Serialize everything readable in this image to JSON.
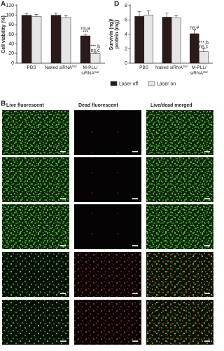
{
  "chart_data": [
    {
      "type": "bar",
      "panel_label": "A",
      "ylabel": [
        "Cell viability (%)"
      ],
      "categories": [
        "PBS",
        "Naked siRNA",
        "M-PLL/ siRNA"
      ],
      "category_superscripts": [
        null,
        "Sur",
        "Sur"
      ],
      "ylim": [
        0,
        120
      ],
      "yticks": [
        0,
        20,
        40,
        60,
        80,
        100,
        120
      ],
      "series": [
        {
          "values": [
            100,
            100,
            57
          ],
          "errors": [
            4,
            5,
            3
          ],
          "annotations": [
            null,
            null,
            [
              "ns,a",
              "***"
            ]
          ]
        },
        {
          "values": [
            97,
            95,
            20
          ],
          "errors": [
            5,
            4,
            2
          ],
          "annotations": [
            null,
            null,
            [
              "***,b",
              "ns,c"
            ]
          ]
        }
      ]
    },
    {
      "type": "bar",
      "panel_label": "D",
      "ylabel": [
        "Survivin (ng)/",
        "protein (mg)"
      ],
      "categories": [
        "PBS",
        "Naked siRNA",
        "M-PLL/ siRNA"
      ],
      "category_superscripts": [
        null,
        "Sur",
        "Sur"
      ],
      "ylim": [
        0,
        8
      ],
      "yticks": [
        0,
        2,
        4,
        6,
        8
      ],
      "series": [
        {
          "values": [
            6.5,
            6.4,
            4.1
          ],
          "errors": [
            0.7,
            0.6,
            0.5
          ],
          "annotations": [
            null,
            null,
            [
              "ns,#"
            ]
          ]
        },
        {
          "values": [
            6.7,
            6.3,
            1.6
          ],
          "errors": [
            0.6,
            0.3,
            0.4
          ],
          "annotations": [
            null,
            null,
            [
              "***,b",
              "ns,c"
            ]
          ]
        }
      ]
    }
  ],
  "legend": [
    {
      "name": "Laser off",
      "color": "#2a1a1a"
    },
    {
      "name": "Laser on",
      "color": "#e6e6e6"
    }
  ],
  "image_panel": {
    "label": "B",
    "columns": [
      "Live fluorescent",
      "Dead fluorescent",
      "Live/dead merged"
    ]
  }
}
